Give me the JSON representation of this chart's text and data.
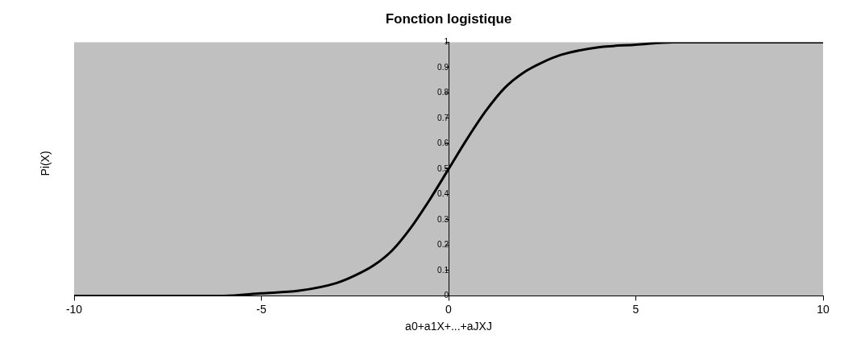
{
  "chart_data": {
    "type": "line",
    "title": "Fonction logistique",
    "xlabel": "a0+a1X+...+aJXJ",
    "ylabel": "Pi(X)",
    "x": [
      -10,
      -8,
      -6,
      -5,
      -4,
      -3,
      -2.5,
      -2,
      -1.5,
      -1,
      -0.5,
      0,
      0.5,
      1,
      1.5,
      2,
      2.5,
      3,
      4,
      5,
      6,
      8,
      10
    ],
    "series": [
      {
        "color": "#000000",
        "values": [
          0,
          0,
          0,
          0.01,
          0.02,
          0.05,
          0.08,
          0.12,
          0.18,
          0.27,
          0.38,
          0.5,
          0.62,
          0.73,
          0.82,
          0.88,
          0.92,
          0.95,
          0.98,
          0.99,
          1,
          1,
          1
        ]
      }
    ],
    "xlim": [
      -10,
      10
    ],
    "xticks": [
      -10,
      -5,
      0,
      5,
      10
    ],
    "ylim": [
      0,
      1
    ],
    "yticks": [
      0,
      0.1,
      0.2,
      0.3,
      0.4,
      0.5,
      0.6,
      0.7,
      0.8,
      0.9,
      1
    ],
    "grid": false,
    "legend": false,
    "marker": "none",
    "line_style": "solid"
  }
}
